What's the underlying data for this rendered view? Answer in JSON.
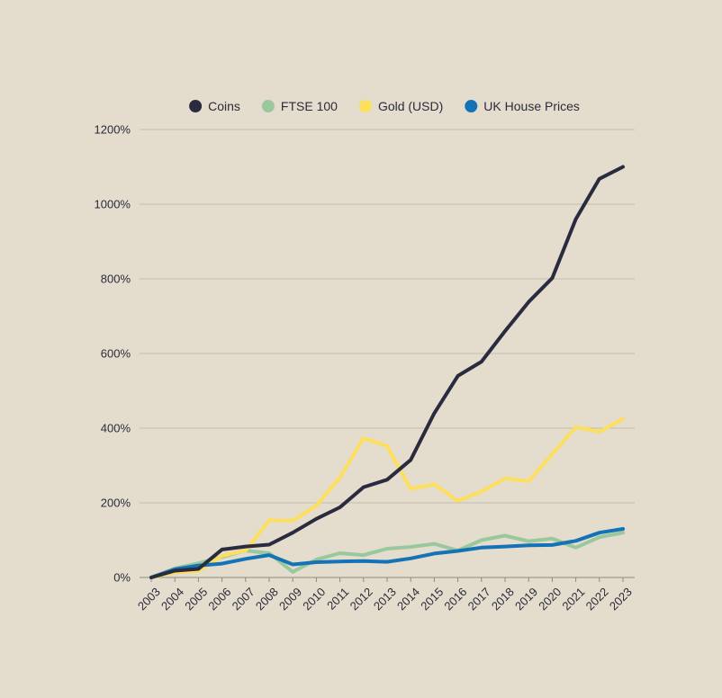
{
  "chart_data": {
    "type": "line",
    "title": "",
    "xlabel": "",
    "ylabel": "",
    "x": [
      "2003",
      "2004",
      "2005",
      "2006",
      "2007",
      "2008",
      "2009",
      "2010",
      "2011",
      "2012",
      "2013",
      "2014",
      "2015",
      "2016",
      "2017",
      "2018",
      "2019",
      "2020",
      "2021",
      "2022",
      "2023"
    ],
    "y_ticks": [
      "0%",
      "200%",
      "400%",
      "600%",
      "800%",
      "1000%",
      "1200%"
    ],
    "y_tick_values": [
      0,
      200,
      400,
      600,
      800,
      1000,
      1200
    ],
    "ylim": [
      0,
      1200
    ],
    "grid": true,
    "legend_position": "top",
    "series": [
      {
        "name": "Coins",
        "color": "#2b2b3f",
        "values": [
          0,
          18,
          23,
          75,
          83,
          88,
          120,
          157,
          188,
          242,
          262,
          315,
          440,
          540,
          578,
          660,
          738,
          802,
          960,
          1068,
          1100
        ]
      },
      {
        "name": "FTSE 100",
        "color": "#9ac89d",
        "values": [
          0,
          24,
          38,
          55,
          72,
          65,
          15,
          48,
          65,
          60,
          77,
          82,
          90,
          72,
          100,
          112,
          97,
          104,
          80,
          108,
          120
        ]
      },
      {
        "name": "Gold (USD)",
        "color": "#fddf5e",
        "values": [
          0,
          14,
          17,
          58,
          72,
          153,
          152,
          193,
          268,
          373,
          352,
          237,
          250,
          205,
          230,
          265,
          258,
          330,
          403,
          390,
          425
        ]
      },
      {
        "name": "UK House Prices",
        "color": "#1473b7",
        "values": [
          0,
          22,
          32,
          37,
          50,
          60,
          35,
          41,
          43,
          44,
          42,
          51,
          64,
          71,
          80,
          83,
          86,
          87,
          98,
          120,
          130
        ]
      }
    ]
  }
}
